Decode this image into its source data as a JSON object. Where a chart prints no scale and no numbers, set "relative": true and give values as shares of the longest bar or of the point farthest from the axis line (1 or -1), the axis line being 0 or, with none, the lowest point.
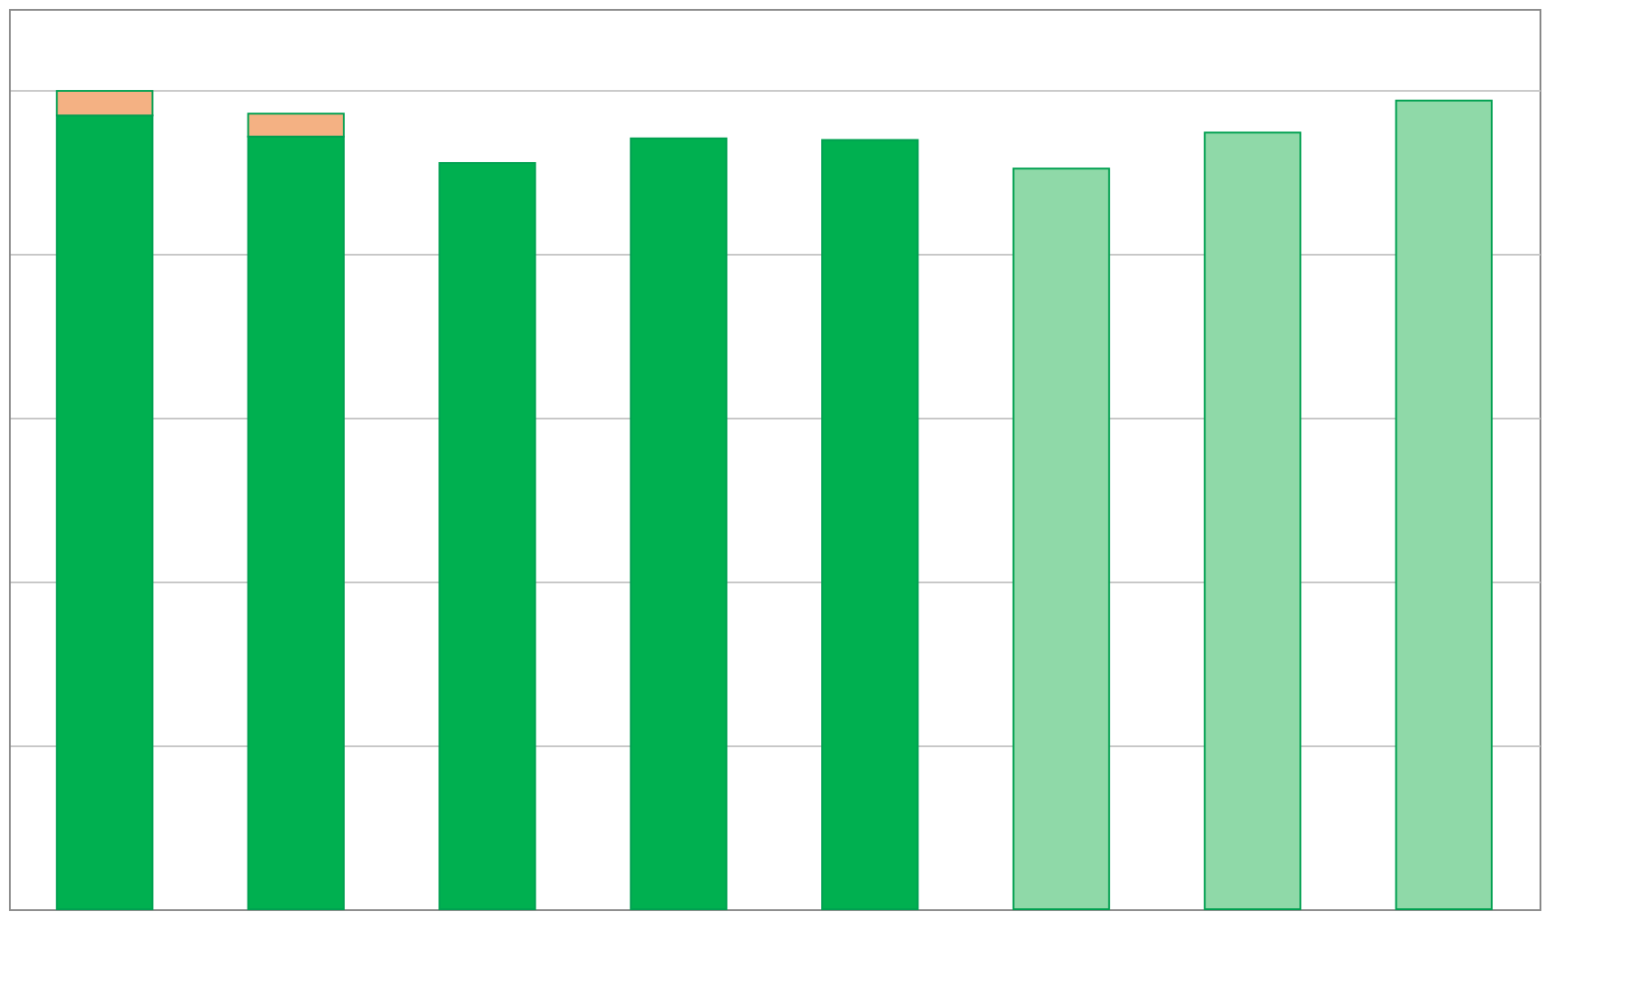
{
  "chart_data": {
    "type": "bar",
    "relative": true,
    "stacked": true,
    "grid": true,
    "categories": [
      null,
      null,
      null,
      null,
      null,
      null,
      null,
      null
    ],
    "series": [
      {
        "color": "#00b050",
        "values": [
          0.97,
          0.944,
          0.912,
          0.942,
          0.94,
          null,
          null,
          null
        ]
      },
      {
        "color": "#8fd9a8",
        "values": [
          null,
          null,
          null,
          null,
          null,
          0.905,
          0.949,
          0.988
        ]
      },
      {
        "color": "#f4b183",
        "values": [
          0.03,
          0.028,
          null,
          null,
          null,
          null,
          null,
          null
        ]
      }
    ]
  }
}
